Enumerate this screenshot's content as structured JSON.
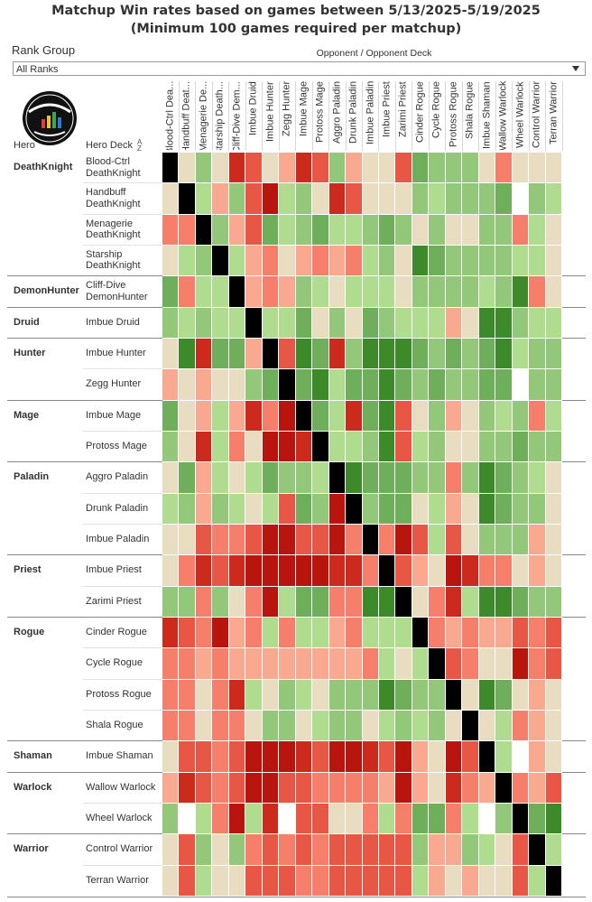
{
  "title": {
    "line1": "Matchup Win rates based on games between 5/13/2025-5/19/2025",
    "line2": "(Minimum 100 games required per matchup)"
  },
  "filter": {
    "label": "Rank Group",
    "value": "All Ranks"
  },
  "logo_icon": "data-reaper-report-logo",
  "headers": {
    "opponent": "Opponent / Opponent Deck",
    "hero": "Hero",
    "deck": "Hero Deck",
    "sort_icon": "sort-ascending-icon"
  },
  "colors": {
    "B": "#000000",
    "X": "#ffffff",
    "N": "#e8dcc1",
    "g1": "#b0dc8f",
    "g2": "#93c87a",
    "g3": "#6fae5a",
    "g4": "#3c8a29",
    "r1": "#f9a98f",
    "r2": "#f57f6a",
    "r3": "#e85646",
    "r4": "#cc2a1c",
    "r5": "#b8150e"
  },
  "chart_data": {
    "type": "heatmap",
    "title": "Matchup Win rates based on games between 5/13/2025-5/19/2025",
    "subtitle": "(Minimum 100 games required per matchup)",
    "xlabel": "Opponent / Opponent Deck",
    "columns": [
      "Blood-Ctrl Dea...",
      "Handbuff Deat...",
      "Menagerie De...",
      "Starship Death...",
      "Cliff-Dive Dem...",
      "Imbue Druid",
      "Imbue Hunter",
      "Zegg Hunter",
      "Imbue Mage",
      "Protoss Mage",
      "Aggro Paladin",
      "Drunk Paladin",
      "Imbue Paladin",
      "Imbue Priest",
      "Zarimi Priest",
      "Cinder Rogue",
      "Cycle Rogue",
      "Protoss Rogue",
      "Shala Rogue",
      "Imbue Shaman",
      "Wallow Warlock",
      "Wheel Warlock",
      "Control Warrior",
      "Terran Warrior"
    ],
    "groups": [
      {
        "hero": "DeathKnight",
        "rows": [
          {
            "deck": "Blood-Ctrl DeathKnight",
            "cells": [
              "B",
              "N",
              "g2",
              "N",
              "r4",
              "r3",
              "N",
              "r1",
              "r4",
              "r3",
              "g2",
              "r1",
              "N",
              "N",
              "r3",
              "g3",
              "g2",
              "g2",
              "g2",
              "N",
              "r2",
              "N",
              "N",
              "N"
            ]
          },
          {
            "deck": "Handbuff DeathKnight",
            "cells": [
              "N",
              "B",
              "g1",
              "r1",
              "g2",
              "r3",
              "r5",
              "g1",
              "g2",
              "N",
              "r4",
              "r3",
              "N",
              "N",
              "N",
              "g2",
              "g1",
              "g2",
              "g2",
              "g2",
              "g3",
              "X",
              "g2",
              "g1"
            ]
          },
          {
            "deck": "Menagerie DeathKnight",
            "cells": [
              "r2",
              "r2",
              "B",
              "g2",
              "r1",
              "r3",
              "g3",
              "g1",
              "g2",
              "g3",
              "g1",
              "g1",
              "g2",
              "g3",
              "g2",
              "N",
              "g2",
              "N",
              "N",
              "g2",
              "g2",
              "r2",
              "g1",
              "N"
            ]
          },
          {
            "deck": "Starship DeathKnight",
            "cells": [
              "N",
              "g1",
              "g2",
              "B",
              "g1",
              "r1",
              "r2",
              "N",
              "r1",
              "r2",
              "r1",
              "r2",
              "g1",
              "g2",
              "N",
              "g4",
              "g3",
              "g2",
              "g2",
              "g2",
              "g2",
              "g1",
              "g1",
              "N"
            ]
          }
        ]
      },
      {
        "hero": "DemonHunter",
        "rows": [
          {
            "deck": "Cliff-Dive DemonHunter",
            "cells": [
              "g3",
              "r2",
              "g1",
              "g1",
              "B",
              "r1",
              "r2",
              "r1",
              "g2",
              "g1",
              "N",
              "g1",
              "g1",
              "g1",
              "N",
              "g2",
              "g2",
              "g2",
              "g2",
              "g1",
              "g2",
              "g4",
              "r2",
              "N"
            ]
          }
        ]
      },
      {
        "hero": "Druid",
        "rows": [
          {
            "deck": "Imbue Druid",
            "cells": [
              "g2",
              "g1",
              "g2",
              "g1",
              "g1",
              "B",
              "g1",
              "g1",
              "g3",
              "N",
              "g2",
              "N",
              "g3",
              "g2",
              "g1",
              "g1",
              "g1",
              "r1",
              "N",
              "g4",
              "g4",
              "g2",
              "g1",
              "g1"
            ]
          }
        ]
      },
      {
        "hero": "Hunter",
        "rows": [
          {
            "deck": "Imbue Hunter",
            "cells": [
              "N",
              "g4",
              "r4",
              "g3",
              "g3",
              "r1",
              "B",
              "r3",
              "g4",
              "g3",
              "r4",
              "g2",
              "g4",
              "g4",
              "g4",
              "g3",
              "g2",
              "g3",
              "g2",
              "g3",
              "g4",
              "g1",
              "g2",
              "g2"
            ]
          },
          {
            "deck": "Zegg Hunter",
            "cells": [
              "r1",
              "N",
              "r1",
              "N",
              "N",
              "g2",
              "g3",
              "B",
              "g3",
              "g4",
              "g1",
              "g3",
              "g3",
              "g4",
              "g3",
              "g2",
              "g3",
              "g2",
              "g2",
              "g3",
              "g3",
              "X",
              "g2",
              "g2"
            ]
          }
        ]
      },
      {
        "hero": "Mage",
        "rows": [
          {
            "deck": "Imbue Mage",
            "cells": [
              "g3",
              "N",
              "r1",
              "g1",
              "r1",
              "r4",
              "r2",
              "r5",
              "B",
              "g3",
              "g1",
              "r4",
              "g3",
              "g4",
              "r3",
              "N",
              "g2",
              "r1",
              "N",
              "g2",
              "g1",
              "g2",
              "r2",
              "g1"
            ]
          },
          {
            "deck": "Protoss Mage",
            "cells": [
              "g2",
              "N",
              "r4",
              "g1",
              "r2",
              "N",
              "r5",
              "r5",
              "r4",
              "B",
              "g1",
              "g1",
              "g2",
              "g4",
              "r3",
              "g1",
              "g2",
              "N",
              "N",
              "g2",
              "g2",
              "g3",
              "g2",
              "g2"
            ]
          }
        ]
      },
      {
        "hero": "Paladin",
        "rows": [
          {
            "deck": "Aggro Paladin",
            "cells": [
              "N",
              "g3",
              "r1",
              "g1",
              "N",
              "g1",
              "g3",
              "g2",
              "g2",
              "g1",
              "B",
              "g4",
              "g3",
              "g3",
              "g3",
              "g2",
              "g2",
              "r2",
              "g2",
              "g4",
              "g3",
              "g2",
              "g1",
              "N"
            ]
          },
          {
            "deck": "Drunk Paladin",
            "cells": [
              "g1",
              "g2",
              "r1",
              "g2",
              "g1",
              "N",
              "g1",
              "r3",
              "g3",
              "g2",
              "r5",
              "B",
              "g2",
              "g3",
              "g3",
              "N",
              "g1",
              "r1",
              "N",
              "g4",
              "g3",
              "g2",
              "g2",
              "N"
            ]
          },
          {
            "deck": "Imbue Paladin",
            "cells": [
              "N",
              "N",
              "r3",
              "r2",
              "r2",
              "r3",
              "r5",
              "r5",
              "r3",
              "r3",
              "r5",
              "r2",
              "B",
              "r2",
              "r5",
              "r3",
              "g1",
              "r3",
              "N",
              "g2",
              "g2",
              "g2",
              "r1",
              "N"
            ]
          }
        ]
      },
      {
        "hero": "Priest",
        "rows": [
          {
            "deck": "Imbue Priest",
            "cells": [
              "N",
              "r2",
              "r4",
              "r3",
              "r4",
              "r5",
              "r5",
              "r5",
              "r5",
              "r5",
              "r4",
              "r4",
              "r2",
              "B",
              "r3",
              "r1",
              "N",
              "r5",
              "r4",
              "r2",
              "r2",
              "N",
              "r1",
              "N"
            ]
          },
          {
            "deck": "Zarimi Priest",
            "cells": [
              "g2",
              "g2",
              "r2",
              "g2",
              "N",
              "r2",
              "r5",
              "g1",
              "g3",
              "g3",
              "r2",
              "r2",
              "g4",
              "g4",
              "B",
              "N",
              "r2",
              "r4",
              "g1",
              "g4",
              "g4",
              "g3",
              "g2",
              "g2"
            ]
          }
        ]
      },
      {
        "hero": "Rogue",
        "rows": [
          {
            "deck": "Cinder Rogue",
            "cells": [
              "r4",
              "r3",
              "r2",
              "r5",
              "r1",
              "r2",
              "g1",
              "r2",
              "g1",
              "g1",
              "r1",
              "r2",
              "g1",
              "g1",
              "g1",
              "B",
              "r2",
              "r1",
              "r2",
              "r1",
              "r1",
              "r3",
              "r2",
              "r3"
            ]
          },
          {
            "deck": "Cycle Rogue",
            "cells": [
              "r2",
              "r2",
              "r1",
              "r2",
              "r1",
              "r1",
              "r1",
              "r1",
              "r1",
              "r1",
              "r1",
              "r1",
              "r2",
              "g1",
              "N",
              "g1",
              "B",
              "r3",
              "r2",
              "N",
              "N",
              "r5",
              "r2",
              "r3"
            ]
          },
          {
            "deck": "Protoss Rogue",
            "cells": [
              "r2",
              "r2",
              "N",
              "r2",
              "r4",
              "g1",
              "N",
              "g2",
              "g1",
              "N",
              "g2",
              "g2",
              "g2",
              "g4",
              "g3",
              "g2",
              "g2",
              "B",
              "N",
              "g4",
              "g3",
              "N",
              "r1",
              "N"
            ]
          },
          {
            "deck": "Shala Rogue",
            "cells": [
              "r2",
              "r2",
              "N",
              "r2",
              "r2",
              "N",
              "g2",
              "g2",
              "N",
              "g1",
              "g2",
              "g2",
              "N",
              "g1",
              "g2",
              "g1",
              "g2",
              "N",
              "B",
              "N",
              "g1",
              "r2",
              "r1",
              "N"
            ]
          }
        ]
      },
      {
        "hero": "Shaman",
        "rows": [
          {
            "deck": "Imbue Shaman",
            "cells": [
              "N",
              "r3",
              "r3",
              "r2",
              "r3",
              "r5",
              "r5",
              "r5",
              "r4",
              "r3",
              "r5",
              "r5",
              "r4",
              "r3",
              "r5",
              "r1",
              "N",
              "r5",
              "r3",
              "B",
              "g1",
              "X",
              "r1",
              "N"
            ]
          }
        ]
      },
      {
        "hero": "Warlock",
        "rows": [
          {
            "deck": "Wallow Warlock",
            "cells": [
              "r1",
              "r4",
              "r3",
              "r2",
              "r3",
              "r5",
              "r5",
              "r3",
              "r3",
              "r2",
              "r2",
              "r2",
              "r2",
              "r1",
              "r5",
              "r1",
              "N",
              "r4",
              "r2",
              "r1",
              "B",
              "r2",
              "r1",
              "r3"
            ]
          },
          {
            "deck": "Wheel Warlock",
            "cells": [
              "g2",
              "X",
              "g1",
              "r2",
              "r5",
              "g1",
              "r4",
              "X",
              "r3",
              "r3",
              "N",
              "N",
              "r2",
              "g1",
              "r2",
              "g3",
              "g3",
              "r2",
              "g1",
              "X",
              "g2",
              "B",
              "g3",
              "g4"
            ]
          }
        ]
      },
      {
        "hero": "Warrior",
        "rows": [
          {
            "deck": "Control Warrior",
            "cells": [
              "N",
              "r3",
              "g2",
              "N",
              "g2",
              "r2",
              "r3",
              "r2",
              "r3",
              "r2",
              "r3",
              "r3",
              "r3",
              "r3",
              "r3",
              "g2",
              "r1",
              "r1",
              "g2",
              "g1",
              "N",
              "r3",
              "B",
              "g1"
            ]
          },
          {
            "deck": "Terran Warrior",
            "cells": [
              "N",
              "r3",
              "g1",
              "N",
              "N",
              "r3",
              "r3",
              "r3",
              "r2",
              "r2",
              "r3",
              "r3",
              "r3",
              "r3",
              "r3",
              "g1",
              "r1",
              "N",
              "r1",
              "N",
              "N",
              "r3",
              "g1",
              "B"
            ]
          }
        ]
      }
    ]
  }
}
